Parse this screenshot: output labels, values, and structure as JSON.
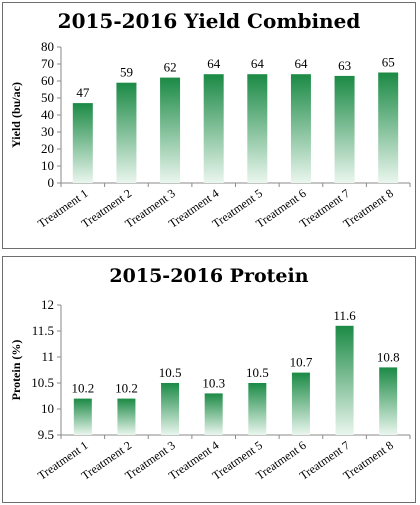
{
  "colors": {
    "bar_top": "#1b8a45",
    "bar_bottom": "#eaf6ee",
    "axis": "#8a8a8a"
  },
  "chart_data": [
    {
      "type": "bar",
      "title": "2015-2016 Yield Combined",
      "xlabel": "",
      "ylabel": "Yield (bu/ac)",
      "categories": [
        "Treatment 1",
        "Treatment 2",
        "Treatment 3",
        "Treatment 4",
        "Treatment 5",
        "Treatment 6",
        "Treatment 7",
        "Treatment 8"
      ],
      "values": [
        47,
        59,
        62,
        64,
        64,
        64,
        63,
        65
      ],
      "data_labels": [
        "47",
        "59",
        "62",
        "64",
        "64",
        "64",
        "63",
        "65"
      ],
      "ylim": [
        0,
        80
      ],
      "yticks": [
        0,
        10,
        20,
        30,
        40,
        50,
        60,
        70,
        80
      ],
      "ytick_labels": [
        "0",
        "10",
        "20",
        "30",
        "40",
        "50",
        "60",
        "70",
        "80"
      ],
      "grid": false,
      "legend": "none"
    },
    {
      "type": "bar",
      "title": "2015-2016 Protein",
      "xlabel": "",
      "ylabel": "Protein (%)",
      "categories": [
        "Treatment 1",
        "Treatment 2",
        "Treatment 3",
        "Treatment 4",
        "Treatment 5",
        "Treatment 6",
        "Treatment 7",
        "Treatment 8"
      ],
      "values": [
        10.2,
        10.2,
        10.5,
        10.3,
        10.5,
        10.7,
        11.6,
        10.8
      ],
      "data_labels": [
        "10.2",
        "10.2",
        "10.5",
        "10.3",
        "10.5",
        "10.7",
        "11.6",
        "10.8"
      ],
      "ylim": [
        9.5,
        12
      ],
      "yticks": [
        9.5,
        10,
        10.5,
        11,
        11.5,
        12
      ],
      "ytick_labels": [
        "9.5",
        "10",
        "10.5",
        "11",
        "11.5",
        "12"
      ],
      "grid": false,
      "legend": "none"
    }
  ]
}
